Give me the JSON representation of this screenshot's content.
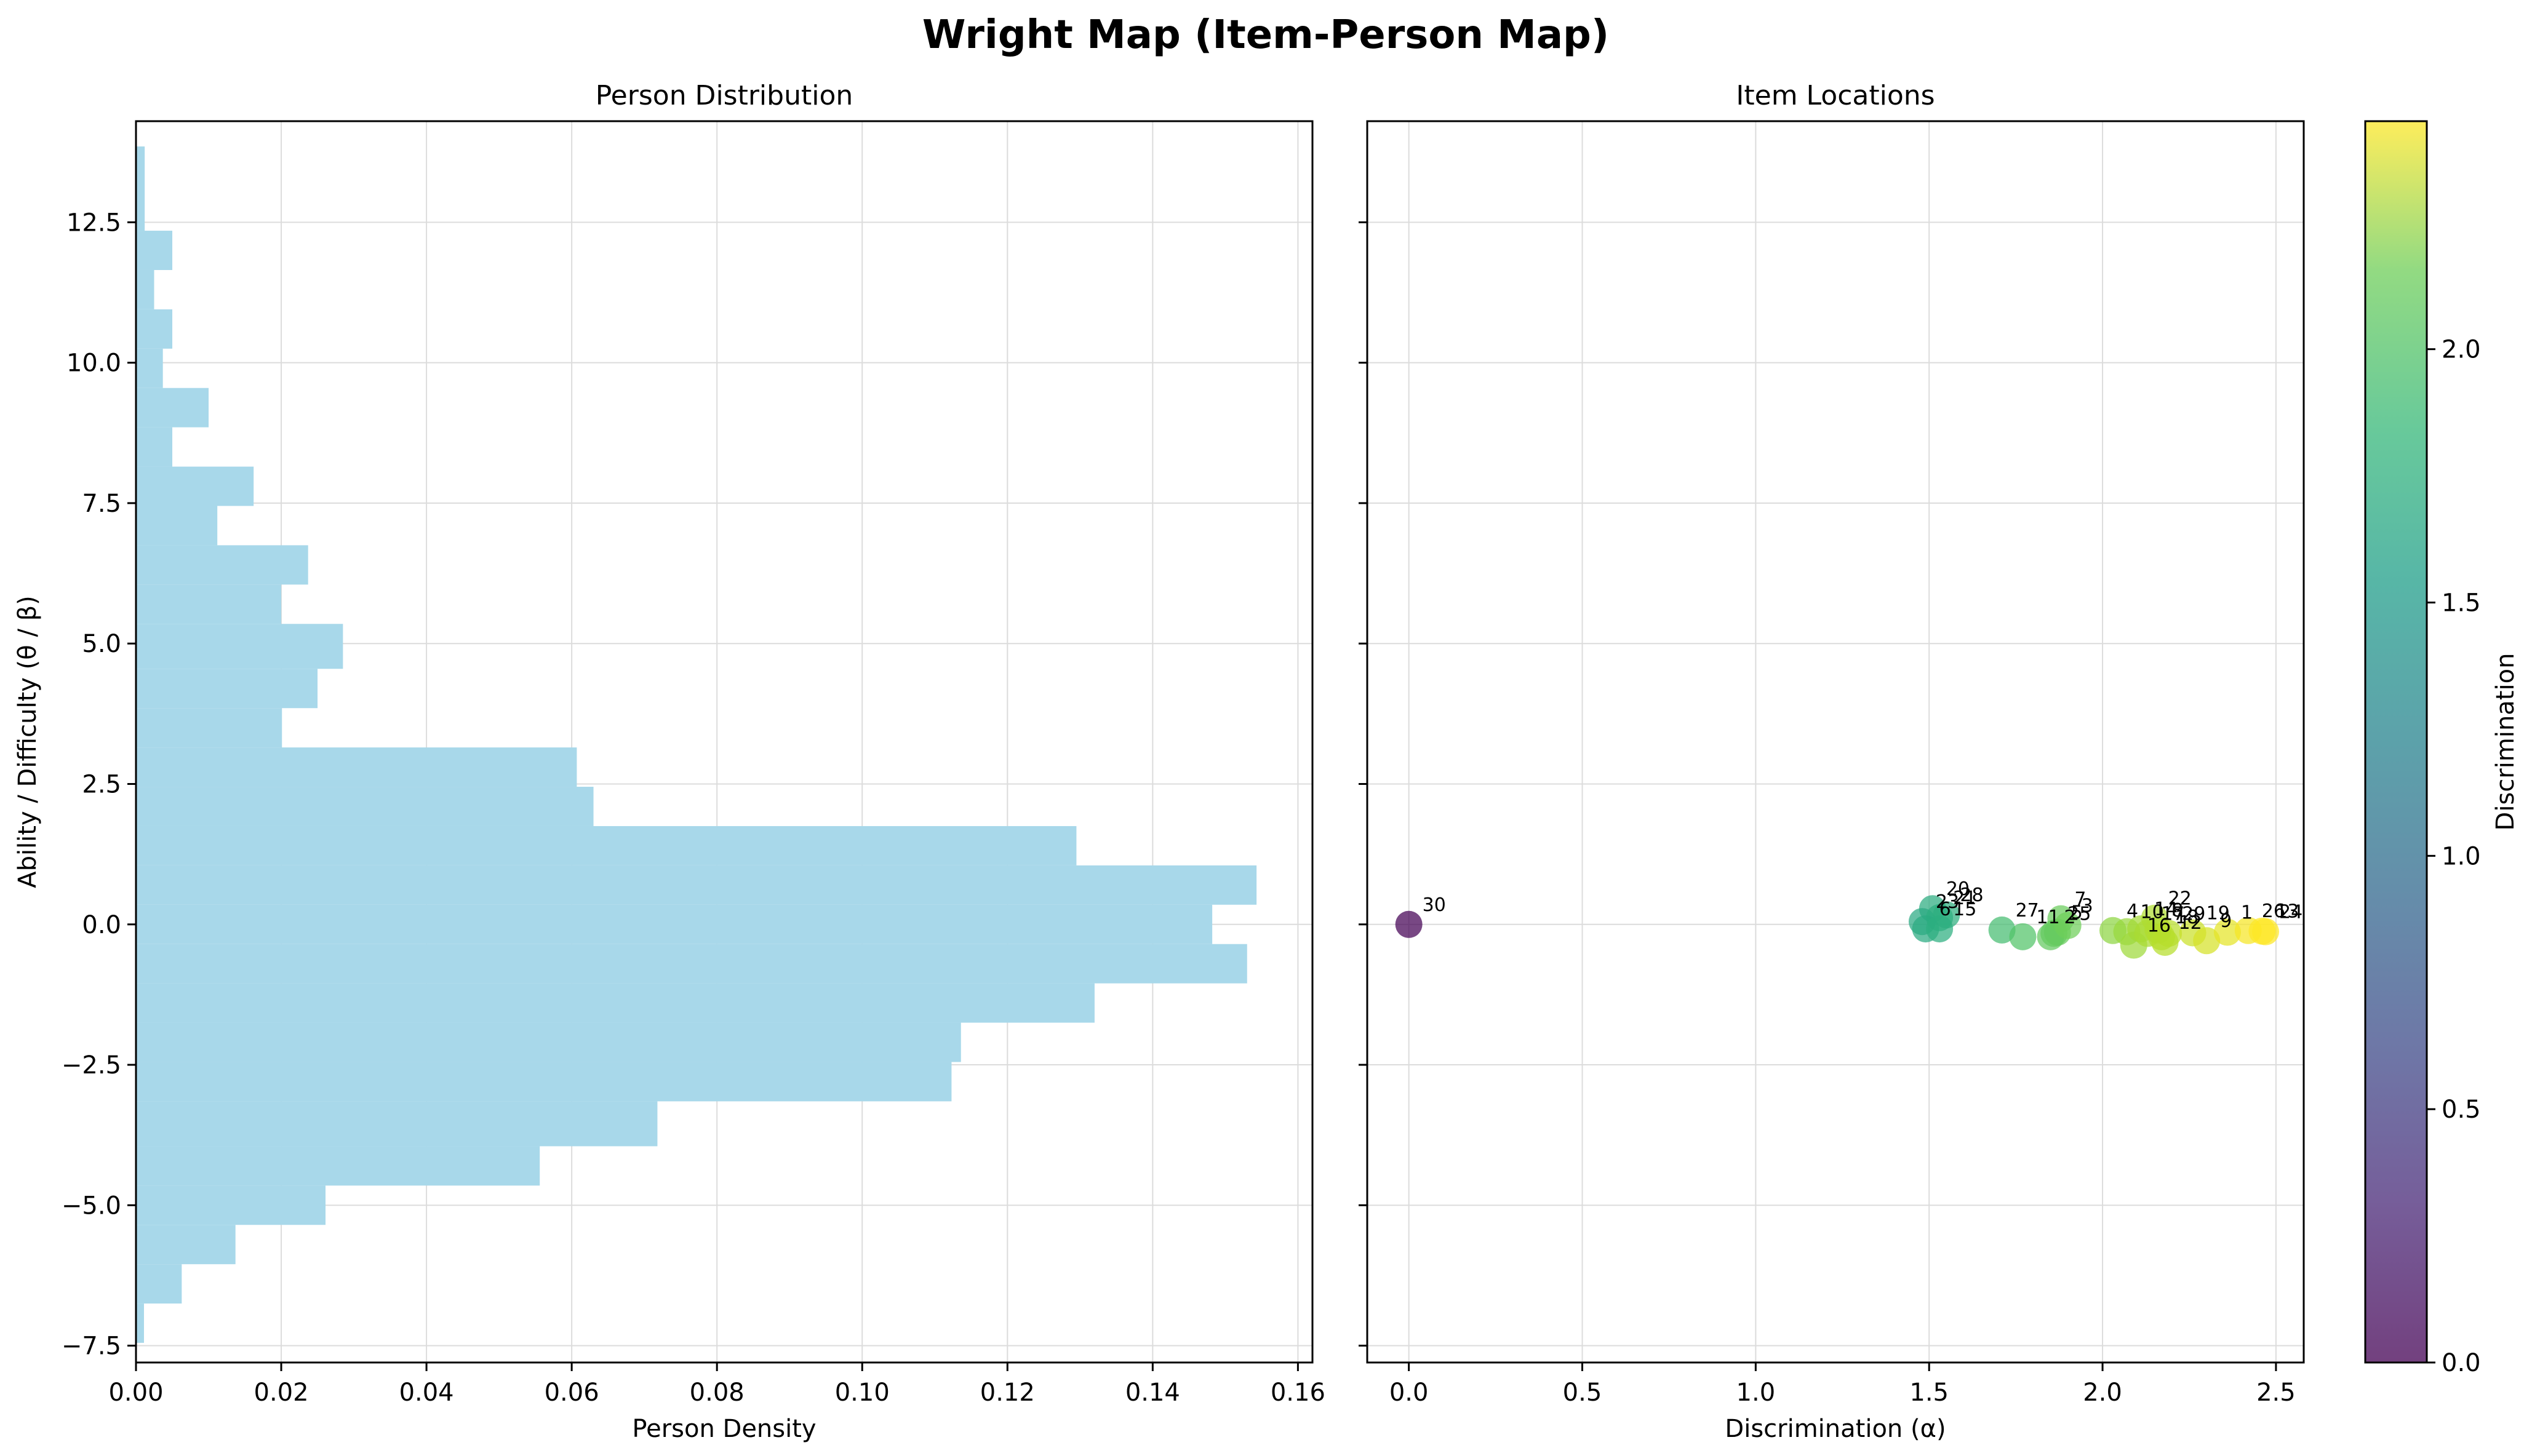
{
  "figure": {
    "title": "Wright Map (Item-Person Map)",
    "colors": {
      "hist_bar": "#a8d8ea",
      "grid": "#dcdcdc",
      "axes": "#000000"
    }
  },
  "chart_data": [
    {
      "type": "bar",
      "orientation": "horizontal",
      "title": "Person Distribution",
      "xlabel": "Person Density",
      "ylabel": "Ability / Difficulty (θ / β)",
      "xlim": [
        0,
        0.162
      ],
      "ylim": [
        -7.8,
        14.3
      ],
      "xticks": [
        "0.00",
        "0.02",
        "0.04",
        "0.06",
        "0.08",
        "0.10",
        "0.12",
        "0.14",
        "0.16"
      ],
      "yticks": [
        "−7.5",
        "−5.0",
        "−2.5",
        "0.0",
        "2.5",
        "5.0",
        "7.5",
        "10.0",
        "12.5"
      ],
      "grid": true,
      "bins": [
        {
          "from": -7.45,
          "to": -6.75,
          "value": 0.0011
        },
        {
          "from": -6.75,
          "to": -6.05,
          "value": 0.0063
        },
        {
          "from": -6.05,
          "to": -5.35,
          "value": 0.0137
        },
        {
          "from": -5.35,
          "to": -4.65,
          "value": 0.0261
        },
        {
          "from": -4.65,
          "to": -3.95,
          "value": 0.0556
        },
        {
          "from": -3.95,
          "to": -3.15,
          "value": 0.0718
        },
        {
          "from": -3.15,
          "to": -2.45,
          "value": 0.1123
        },
        {
          "from": -2.45,
          "to": -1.75,
          "value": 0.1136
        },
        {
          "from": -1.75,
          "to": -1.05,
          "value": 0.132
        },
        {
          "from": -1.05,
          "to": -0.35,
          "value": 0.153
        },
        {
          "from": -0.35,
          "to": 0.35,
          "value": 0.1482
        },
        {
          "from": 0.35,
          "to": 1.05,
          "value": 0.1543
        },
        {
          "from": 1.05,
          "to": 1.75,
          "value": 0.1295
        },
        {
          "from": 1.75,
          "to": 2.45,
          "value": 0.063
        },
        {
          "from": 2.45,
          "to": 3.15,
          "value": 0.0607
        },
        {
          "from": 3.15,
          "to": 3.85,
          "value": 0.0201
        },
        {
          "from": 3.85,
          "to": 4.55,
          "value": 0.025
        },
        {
          "from": 4.55,
          "to": 5.35,
          "value": 0.0285
        },
        {
          "from": 5.35,
          "to": 6.05,
          "value": 0.02
        },
        {
          "from": 6.05,
          "to": 6.75,
          "value": 0.0237
        },
        {
          "from": 6.75,
          "to": 7.45,
          "value": 0.0112
        },
        {
          "from": 7.45,
          "to": 8.15,
          "value": 0.0162
        },
        {
          "from": 8.15,
          "to": 8.85,
          "value": 0.005
        },
        {
          "from": 8.85,
          "to": 9.55,
          "value": 0.01
        },
        {
          "from": 9.55,
          "to": 10.25,
          "value": 0.0037
        },
        {
          "from": 10.25,
          "to": 10.95,
          "value": 0.005
        },
        {
          "from": 10.95,
          "to": 11.65,
          "value": 0.0025
        },
        {
          "from": 11.65,
          "to": 12.35,
          "value": 0.005
        },
        {
          "from": 12.35,
          "to": 13.85,
          "value": 0.0012
        }
      ]
    },
    {
      "type": "scatter",
      "title": "Item Locations",
      "xlabel": "Discrimination (α)",
      "xlim": [
        -0.12,
        2.58
      ],
      "ylim": [
        -7.8,
        14.3
      ],
      "xticks": [
        "0.0",
        "0.5",
        "1.0",
        "1.5",
        "2.0",
        "2.5"
      ],
      "grid": true,
      "colormap": "viridis",
      "colorbar": {
        "label": "Discrimination",
        "range": [
          0,
          2.45
        ],
        "ticks": [
          "0.0",
          "0.5",
          "1.0",
          "1.5",
          "2.0"
        ]
      },
      "points": [
        {
          "label": "30",
          "x": 0.0,
          "y": 0.0
        },
        {
          "label": "20",
          "x": 1.51,
          "y": 0.28
        },
        {
          "label": "23",
          "x": 1.48,
          "y": 0.05
        },
        {
          "label": "28",
          "x": 1.55,
          "y": 0.17
        },
        {
          "label": "21",
          "x": 1.53,
          "y": 0.12
        },
        {
          "label": "6",
          "x": 1.49,
          "y": -0.08
        },
        {
          "label": "15",
          "x": 1.53,
          "y": -0.08
        },
        {
          "label": "27",
          "x": 1.71,
          "y": -0.1
        },
        {
          "label": "11",
          "x": 1.77,
          "y": -0.22
        },
        {
          "label": "2",
          "x": 1.85,
          "y": -0.22
        },
        {
          "label": "5",
          "x": 1.87,
          "y": -0.14
        },
        {
          "label": "25",
          "x": 1.86,
          "y": -0.16
        },
        {
          "label": "7",
          "x": 1.88,
          "y": 0.1
        },
        {
          "label": "3",
          "x": 1.9,
          "y": -0.02
        },
        {
          "label": "4",
          "x": 2.03,
          "y": -0.11
        },
        {
          "label": "10",
          "x": 2.07,
          "y": -0.13
        },
        {
          "label": "16",
          "x": 2.09,
          "y": -0.37
        },
        {
          "label": "14",
          "x": 2.11,
          "y": -0.08
        },
        {
          "label": "17",
          "x": 2.13,
          "y": -0.16
        },
        {
          "label": "8",
          "x": 2.16,
          "y": -0.1
        },
        {
          "label": "22",
          "x": 2.15,
          "y": 0.11
        },
        {
          "label": "18",
          "x": 2.17,
          "y": -0.22
        },
        {
          "label": "29",
          "x": 2.19,
          "y": -0.16
        },
        {
          "label": "12",
          "x": 2.18,
          "y": -0.32
        },
        {
          "label": "19",
          "x": 2.26,
          "y": -0.15
        },
        {
          "label": "9",
          "x": 2.3,
          "y": -0.29
        },
        {
          "label": "1",
          "x": 2.36,
          "y": -0.14
        },
        {
          "label": "26",
          "x": 2.42,
          "y": -0.11
        },
        {
          "label": "13",
          "x": 2.46,
          "y": -0.12
        },
        {
          "label": "24",
          "x": 2.47,
          "y": -0.13
        }
      ]
    }
  ]
}
